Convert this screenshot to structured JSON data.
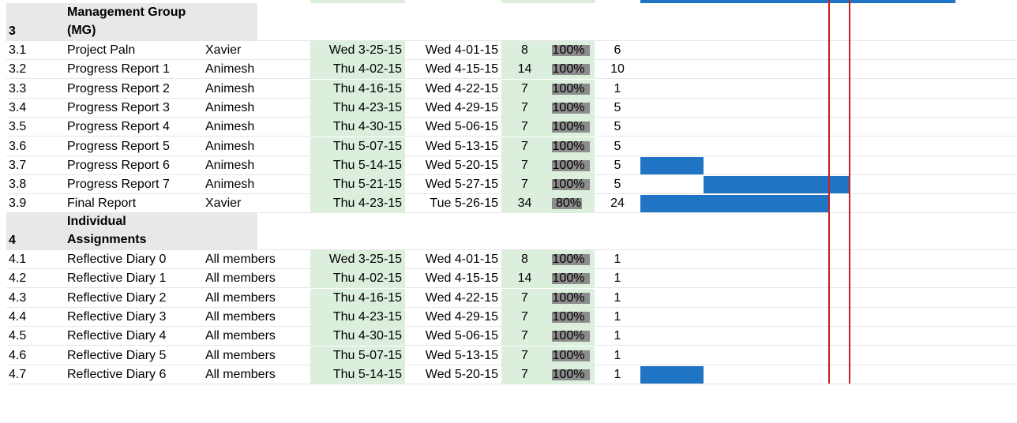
{
  "groups": [
    {
      "number": "3",
      "title_line1": "Management Group",
      "title_line2": "(MG)",
      "tasks": [
        {
          "id": "3.1",
          "task": "Project Paln",
          "owner": "Xavier",
          "start": "Wed 3-25-15",
          "end": "Wed 4-01-15",
          "days": "8",
          "pct": "100%",
          "pct_value": 1.0,
          "work_days": "6"
        },
        {
          "id": "3.2",
          "task": "Progress Report 1",
          "owner": "Animesh",
          "start": "Thu 4-02-15",
          "end": "Wed 4-15-15",
          "days": "14",
          "pct": "100%",
          "pct_value": 1.0,
          "work_days": "10"
        },
        {
          "id": "3.3",
          "task": "Progress Report 2",
          "owner": "Animesh",
          "start": "Thu 4-16-15",
          "end": "Wed 4-22-15",
          "days": "7",
          "pct": "100%",
          "pct_value": 1.0,
          "work_days": "1"
        },
        {
          "id": "3.4",
          "task": "Progress Report 3",
          "owner": "Animesh",
          "start": "Thu 4-23-15",
          "end": "Wed 4-29-15",
          "days": "7",
          "pct": "100%",
          "pct_value": 1.0,
          "work_days": "5"
        },
        {
          "id": "3.5",
          "task": "Progress Report 4",
          "owner": "Animesh",
          "start": "Thu 4-30-15",
          "end": "Wed 5-06-15",
          "days": "7",
          "pct": "100%",
          "pct_value": 1.0,
          "work_days": "5"
        },
        {
          "id": "3.6",
          "task": "Progress Report 5",
          "owner": "Animesh",
          "start": "Thu 5-07-15",
          "end": "Wed 5-13-15",
          "days": "7",
          "pct": "100%",
          "pct_value": 1.0,
          "work_days": "5"
        },
        {
          "id": "3.7",
          "task": "Progress Report 6",
          "owner": "Animesh",
          "start": "Thu 5-14-15",
          "end": "Wed 5-20-15",
          "days": "7",
          "pct": "100%",
          "pct_value": 1.0,
          "work_days": "5"
        },
        {
          "id": "3.8",
          "task": "Progress Report 7",
          "owner": "Animesh",
          "start": "Thu 5-21-15",
          "end": "Wed 5-27-15",
          "days": "7",
          "pct": "100%",
          "pct_value": 1.0,
          "work_days": "5"
        },
        {
          "id": "3.9",
          "task": "Final Report",
          "owner": "Xavier",
          "start": "Thu 4-23-15",
          "end": "Tue 5-26-15",
          "days": "34",
          "pct": "80%",
          "pct_value": 0.8,
          "work_days": "24"
        }
      ]
    },
    {
      "number": "4",
      "title_line1": "Individual",
      "title_line2": "Assignments",
      "tasks": [
        {
          "id": "4.1",
          "task": "Reflective Diary 0",
          "owner": "All members",
          "start": "Wed 3-25-15",
          "end": "Wed 4-01-15",
          "days": "8",
          "pct": "100%",
          "pct_value": 1.0,
          "work_days": "1"
        },
        {
          "id": "4.2",
          "task": "Reflective Diary 1",
          "owner": "All members",
          "start": "Thu 4-02-15",
          "end": "Wed 4-15-15",
          "days": "14",
          "pct": "100%",
          "pct_value": 1.0,
          "work_days": "1"
        },
        {
          "id": "4.3",
          "task": "Reflective Diary 2",
          "owner": "All members",
          "start": "Thu 4-16-15",
          "end": "Wed 4-22-15",
          "days": "7",
          "pct": "100%",
          "pct_value": 1.0,
          "work_days": "1"
        },
        {
          "id": "4.4",
          "task": "Reflective Diary 3",
          "owner": "All members",
          "start": "Thu 4-23-15",
          "end": "Wed 4-29-15",
          "days": "7",
          "pct": "100%",
          "pct_value": 1.0,
          "work_days": "1"
        },
        {
          "id": "4.5",
          "task": "Reflective Diary 4",
          "owner": "All members",
          "start": "Thu 4-30-15",
          "end": "Wed 5-06-15",
          "days": "7",
          "pct": "100%",
          "pct_value": 1.0,
          "work_days": "1"
        },
        {
          "id": "4.6",
          "task": "Reflective Diary 5",
          "owner": "All members",
          "start": "Thu 5-07-15",
          "end": "Wed 5-13-15",
          "days": "7",
          "pct": "100%",
          "pct_value": 1.0,
          "work_days": "1"
        },
        {
          "id": "4.7",
          "task": "Reflective Diary 6",
          "owner": "All members",
          "start": "Thu 5-14-15",
          "end": "Wed 5-20-15",
          "days": "7",
          "pct": "100%",
          "pct_value": 1.0,
          "work_days": "1"
        }
      ]
    }
  ],
  "colors": {
    "gantt_bar": "#1f74c4",
    "today_line": "#cc1f1f",
    "date_fill": "#dcefdc",
    "pct_fill": "#8c8c8c",
    "group_header": "#e8e8e8"
  }
}
